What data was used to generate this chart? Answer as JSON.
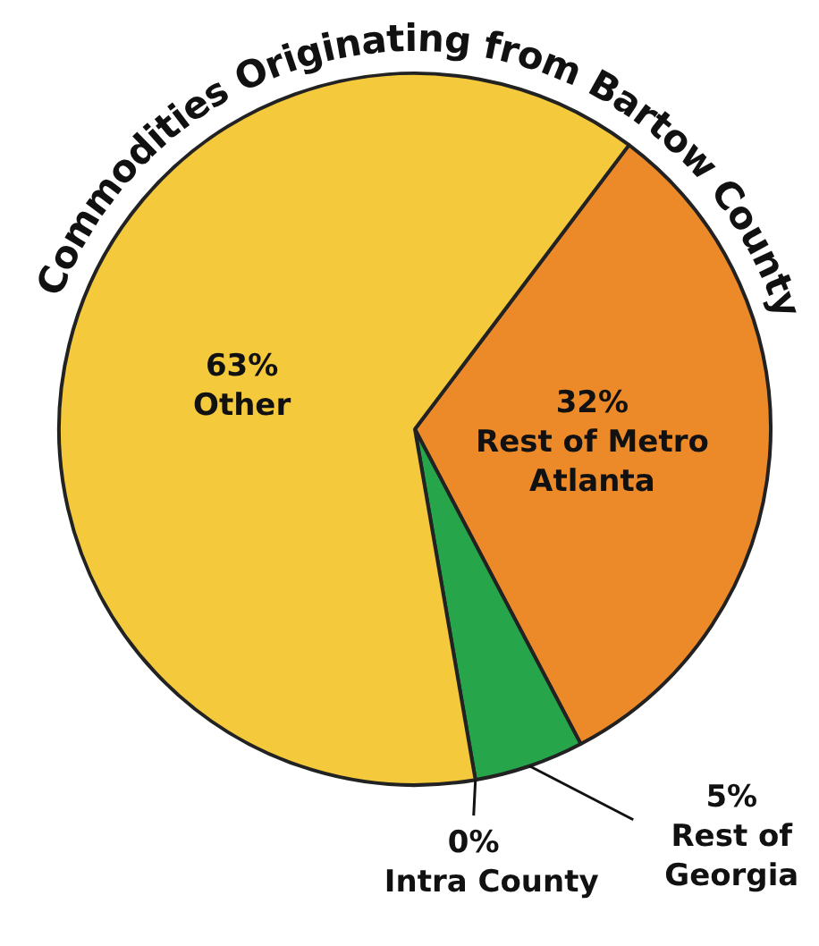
{
  "chart_data": {
    "type": "pie",
    "title": "Commodities Originating from Bartow County",
    "categories": [
      "Rest of Metro Atlanta",
      "Rest of Georgia",
      "Intra County",
      "Other"
    ],
    "values": [
      32,
      5,
      0,
      63
    ],
    "value_labels": [
      "32%",
      "5%",
      "0%",
      "63%"
    ],
    "colors": [
      "#ec8a2a",
      "#27a54b",
      "#1f6b33",
      "#f4c93c"
    ],
    "legend": false
  }
}
